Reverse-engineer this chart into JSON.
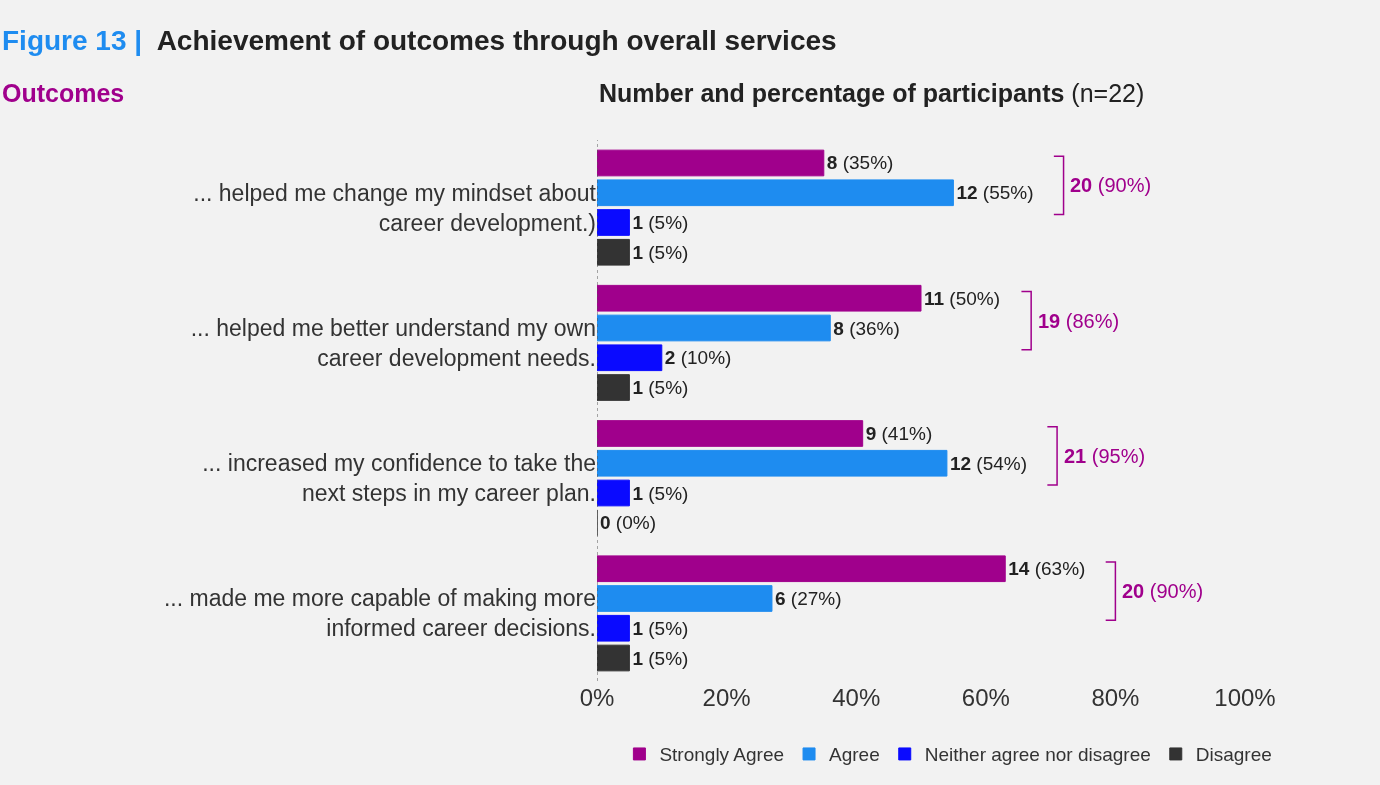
{
  "chart_data": {
    "type": "bar",
    "orientation": "horizontal",
    "title": "Figure 13 | Achievement of outcomes through overall services",
    "ylabel": "Outcomes",
    "xlabel": "Number and percentage of participants (n=22)",
    "categories": [
      "... helped me change my mindset about career development.)",
      "... helped me better understand my own career development needs.",
      "... increased my confidence to take the next steps in my career plan.",
      "... made me more capable of making more informed career decisions."
    ],
    "series": [
      {
        "name": "Strongly Agree",
        "color": "#a0008c",
        "values": [
          35,
          50,
          41,
          63
        ],
        "value_labels": [
          "8 (35%)",
          "11 (50%)",
          "9 (41%)",
          "14 (63%)"
        ]
      },
      {
        "name": "Agree",
        "color": "#1e8cf0",
        "values": [
          55,
          36,
          54,
          27
        ],
        "value_labels": [
          "12 (55%)",
          "8 (36%)",
          "12 (54%)",
          "6 (27%)"
        ]
      },
      {
        "name": "Neither agree nor disagree",
        "color": "#0a0aff",
        "values": [
          5,
          10,
          5,
          5
        ],
        "value_labels": [
          "1 (5%)",
          "2 (10%)",
          "1 (5%)",
          "1 (5%)"
        ]
      },
      {
        "name": "Disagree",
        "color": "#333333",
        "values": [
          5,
          5,
          0,
          5
        ],
        "value_labels": [
          "1 (5%)",
          "1 (5%)",
          "0 (0%)",
          "1 (5%)"
        ]
      }
    ],
    "annotations": [
      "20 (90%)",
      "19 (86%)",
      "21 (95%)",
      "20 (90%)"
    ],
    "xlim": [
      0,
      100
    ],
    "xticks": [
      {
        "value": 0,
        "label": "0%"
      },
      {
        "value": 20,
        "label": "20%"
      },
      {
        "value": 40,
        "label": "40%"
      },
      {
        "value": 60,
        "label": "60%"
      },
      {
        "value": 80,
        "label": "80%"
      },
      {
        "value": 100,
        "label": "100%"
      }
    ],
    "ref_lines": [
      {
        "axis": "x",
        "value": 0,
        "line_style": "dotted",
        "color": "#555555"
      }
    ],
    "grid": false,
    "legend": "bottom"
  }
}
